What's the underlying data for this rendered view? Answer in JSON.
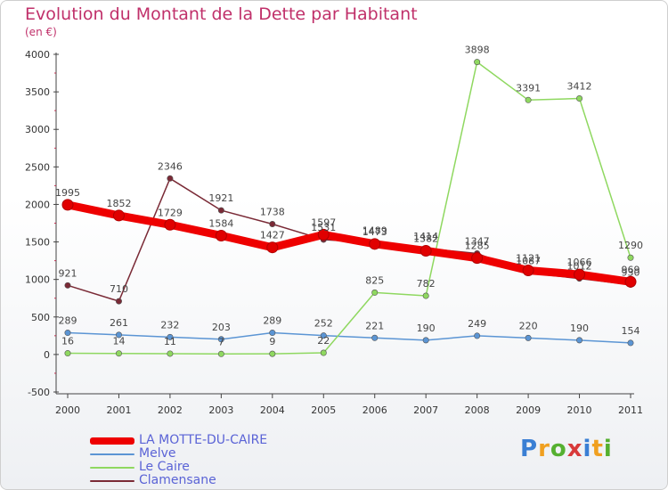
{
  "header": {
    "title": "Evolution du Montant de la Dette par Habitant",
    "unit": "(en €)"
  },
  "logo": {
    "text": "Proxiti",
    "colors": [
      "#3a7fd4",
      "#f0a020",
      "#55b030",
      "#d83a3a",
      "#3a7fd4",
      "#f0a020",
      "#55b030"
    ]
  },
  "chart_data": {
    "type": "line",
    "x": [
      "2000",
      "2001",
      "2002",
      "2003",
      "2004",
      "2005",
      "2006",
      "2007",
      "2008",
      "2009",
      "2010",
      "2011"
    ],
    "ylim": [
      -500,
      4000
    ],
    "yticks": [
      -500,
      0,
      500,
      1000,
      1500,
      2000,
      2500,
      3000,
      3500,
      4000
    ],
    "grid": false,
    "legend": "bottom-left",
    "series": [
      {
        "name": "LA MOTTE-DU-CAIRE",
        "color": "#ee0000",
        "values": [
          1995,
          1852,
          1729,
          1584,
          1427,
          1597,
          1473,
          1382,
          1285,
          1121,
          1066,
          969
        ]
      },
      {
        "name": "Melve",
        "color": "#5b95d4",
        "values": [
          289,
          261,
          232,
          203,
          289,
          252,
          221,
          190,
          249,
          220,
          190,
          154
        ]
      },
      {
        "name": "Le Caire",
        "color": "#8fd860",
        "values": [
          16,
          14,
          11,
          7,
          9,
          22,
          825,
          782,
          3898,
          3391,
          3412,
          1290
        ]
      },
      {
        "name": "Clamensane",
        "color": "#7a2a36",
        "values": [
          921,
          710,
          2346,
          1921,
          1738,
          1531,
          1489,
          1414,
          1347,
          1087,
          1012,
          930
        ]
      }
    ]
  }
}
